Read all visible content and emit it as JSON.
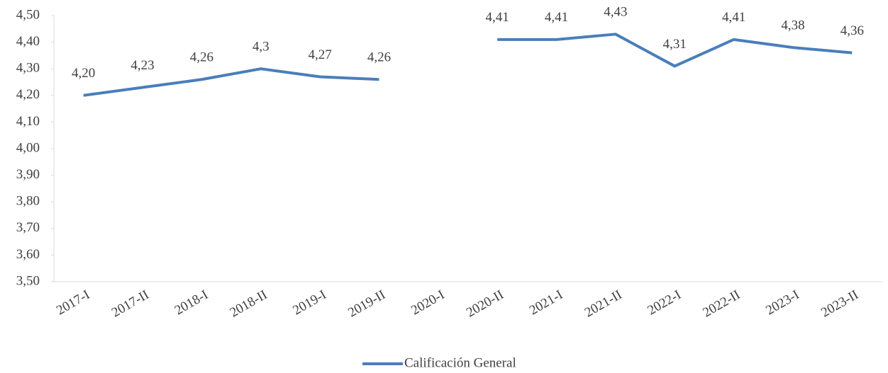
{
  "chart_data": {
    "type": "line",
    "categories": [
      "2017-I",
      "2017-II",
      "2018-I",
      "2018-II",
      "2019-I",
      "2019-II",
      "2020-I",
      "2020-II",
      "2021-I",
      "2021-II",
      "2022-I",
      "2022-II",
      "2023-I",
      "2023-II"
    ],
    "series": [
      {
        "name": "Calificación General",
        "color": "#4a7ebb",
        "values": [
          4.2,
          4.23,
          4.26,
          4.3,
          4.27,
          4.26,
          null,
          4.41,
          4.41,
          4.43,
          4.31,
          4.41,
          4.38,
          4.36
        ],
        "value_labels": [
          "4,20",
          "4,23",
          "4,26",
          "4,3",
          "4,27",
          "4,26",
          null,
          "4,41",
          "4,41",
          "4,43",
          "4,31",
          "4,41",
          "4,38",
          "4,36"
        ]
      }
    ],
    "ylim": [
      3.5,
      4.5
    ],
    "yticks": [
      {
        "value": 3.5,
        "label": "3,50"
      },
      {
        "value": 3.6,
        "label": "3,60"
      },
      {
        "value": 3.7,
        "label": "3,70"
      },
      {
        "value": 3.8,
        "label": "3,80"
      },
      {
        "value": 3.9,
        "label": "3,90"
      },
      {
        "value": 4.0,
        "label": "4,00"
      },
      {
        "value": 4.1,
        "label": "4,10"
      },
      {
        "value": 4.2,
        "label": "4,20"
      },
      {
        "value": 4.3,
        "label": "4,30"
      },
      {
        "value": 4.4,
        "label": "4,40"
      },
      {
        "value": 4.5,
        "label": "4,50"
      }
    ],
    "grid": false,
    "legend": "bottom"
  }
}
